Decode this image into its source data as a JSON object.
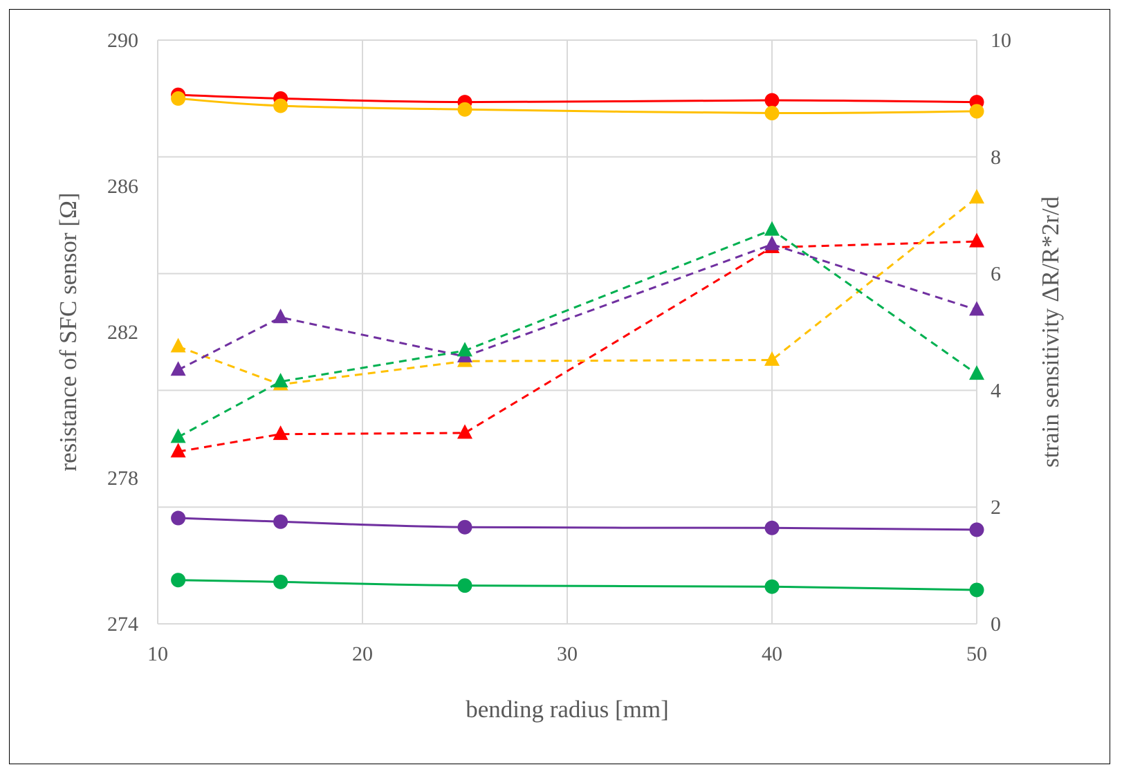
{
  "chart_data": {
    "type": "line",
    "title": "",
    "xlabel": "bending radius [mm]",
    "ylabel": "resistance of SFC sensor [Ω]",
    "y2label": "strain sensitivity ΔR/R*2r/d",
    "xlim": [
      10,
      50
    ],
    "ylim": [
      274,
      290
    ],
    "y2lim": [
      0,
      10
    ],
    "xticks": [
      10,
      20,
      30,
      40,
      50
    ],
    "yticks": [
      274,
      278,
      282,
      286,
      290
    ],
    "y2ticks": [
      0,
      2,
      4,
      6,
      8,
      10
    ],
    "grid": true,
    "legend": "none",
    "x": [
      11,
      16,
      25,
      40,
      50
    ],
    "series": [
      {
        "name": "red resistance",
        "axis": "left",
        "marker": "circle",
        "style": "solid",
        "color": "#ff0000",
        "values": [
          288.5,
          288.4,
          288.3,
          288.35,
          288.3
        ]
      },
      {
        "name": "yellow resistance",
        "axis": "left",
        "marker": "circle",
        "style": "solid",
        "color": "#ffc000",
        "values": [
          288.4,
          288.2,
          288.1,
          288.0,
          288.05
        ]
      },
      {
        "name": "purple resistance",
        "axis": "left",
        "marker": "circle",
        "style": "solid",
        "color": "#7030a0",
        "values": [
          276.9,
          276.8,
          276.65,
          276.63,
          276.58
        ]
      },
      {
        "name": "green resistance",
        "axis": "left",
        "marker": "circle",
        "style": "solid",
        "color": "#00b050",
        "values": [
          275.2,
          275.15,
          275.05,
          275.02,
          274.93
        ]
      },
      {
        "name": "red sensitivity",
        "axis": "right",
        "marker": "triangle",
        "style": "dashed",
        "color": "#ff0000",
        "values": [
          2.95,
          3.25,
          3.27,
          6.45,
          6.55
        ]
      },
      {
        "name": "yellow sensitivity",
        "axis": "right",
        "marker": "triangle",
        "style": "dashed",
        "color": "#ffc000",
        "values": [
          4.75,
          4.1,
          4.5,
          4.52,
          7.3
        ]
      },
      {
        "name": "purple sensitivity",
        "axis": "right",
        "marker": "triangle",
        "style": "dashed",
        "color": "#7030a0",
        "values": [
          4.35,
          5.25,
          4.58,
          6.5,
          5.38
        ]
      },
      {
        "name": "green sensitivity",
        "axis": "right",
        "marker": "triangle",
        "style": "dashed",
        "color": "#00b050",
        "values": [
          3.2,
          4.15,
          4.68,
          6.75,
          4.28
        ]
      }
    ]
  }
}
